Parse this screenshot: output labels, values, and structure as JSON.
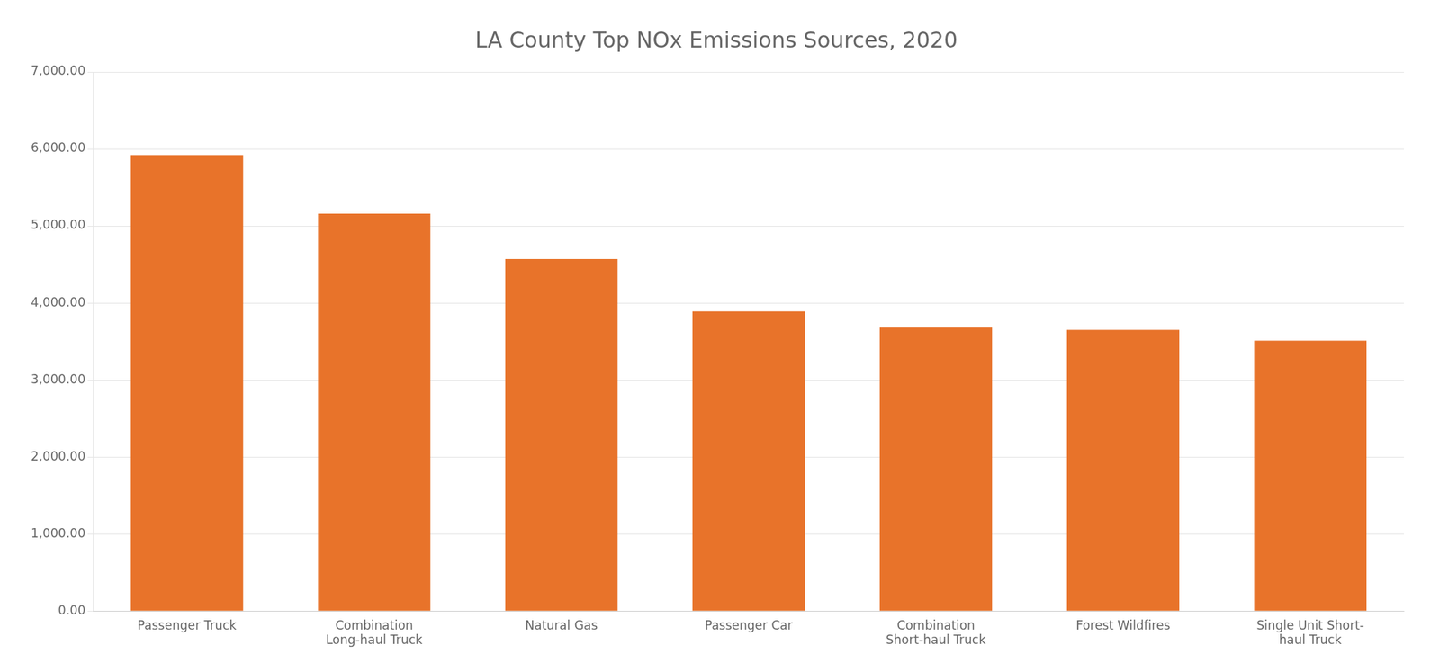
{
  "chart_data": {
    "type": "bar",
    "title": "LA County Top NOx Emissions Sources, 2020",
    "categories": [
      "Passenger Truck",
      "Combination\nLong-haul Truck",
      "Natural Gas",
      "Passenger Car",
      "Combination\nShort-haul Truck",
      "Forest Wildfires",
      "Single Unit Short-\nhaul Truck"
    ],
    "values": [
      5920,
      5160,
      4570,
      3890,
      3680,
      3650,
      3510
    ],
    "color": "#E8732A",
    "ylim": [
      0,
      7000
    ],
    "yticks": [
      {
        "value": 0,
        "label": "0.00"
      },
      {
        "value": 1000,
        "label": "1,000.00"
      },
      {
        "value": 2000,
        "label": "2,000.00"
      },
      {
        "value": 3000,
        "label": "3,000.00"
      },
      {
        "value": 4000,
        "label": "4,000.00"
      },
      {
        "value": 5000,
        "label": "5,000.00"
      },
      {
        "value": 6000,
        "label": "6,000.00"
      },
      {
        "value": 7000,
        "label": "7,000.00"
      }
    ],
    "grid": true
  }
}
